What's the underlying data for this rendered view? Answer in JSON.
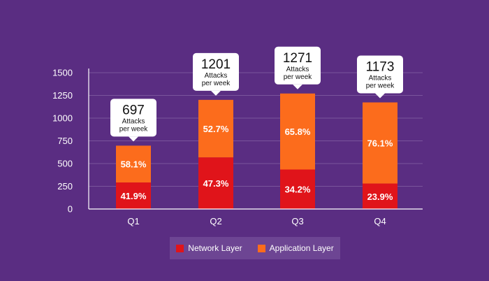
{
  "chart_data": {
    "type": "bar",
    "stacked": true,
    "categories": [
      "Q1",
      "Q2",
      "Q3",
      "Q4"
    ],
    "totals": [
      697,
      1201,
      1271,
      1173
    ],
    "total_units": [
      "Attacks",
      "per week"
    ],
    "series": [
      {
        "name": "Network Layer",
        "color": "#e0141a",
        "percent": [
          41.9,
          47.3,
          34.2,
          23.9
        ],
        "labels": [
          "41.9%",
          "47.3%",
          "34.2%",
          "23.9%"
        ]
      },
      {
        "name": "Application Layer",
        "color": "#fc6c1c",
        "percent": [
          58.1,
          52.7,
          65.8,
          76.1
        ],
        "labels": [
          "58.1%",
          "52.7%",
          "65.8%",
          "76.1%"
        ]
      }
    ],
    "ylim": [
      0,
      1500
    ],
    "yticks": [
      0,
      250,
      500,
      750,
      1000,
      1250,
      1500
    ],
    "grid": true,
    "legend_position": "bottom"
  }
}
